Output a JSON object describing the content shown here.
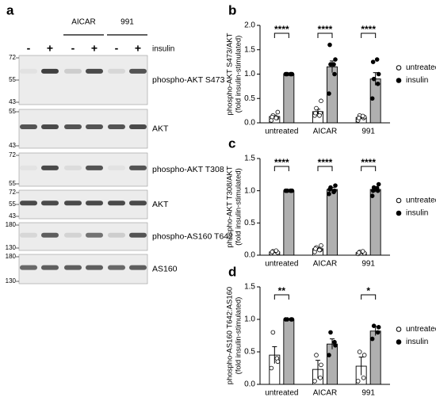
{
  "panel_a": {
    "panel": "a",
    "treatments": [
      "AICAR",
      "991"
    ],
    "lanes": [
      "-",
      "+",
      "-",
      "+",
      "-",
      "+"
    ],
    "lane_factor": "insulin",
    "blots": [
      {
        "label": "phospho-AKT S473",
        "markers": [
          72,
          55,
          43
        ]
      },
      {
        "label": "AKT",
        "markers": [
          55,
          43
        ]
      },
      {
        "label": "phospho-AKT T308",
        "markers": [
          72,
          55
        ]
      },
      {
        "label": "AKT",
        "markers": [
          72,
          55,
          43
        ]
      },
      {
        "label": "phospho-AS160 T642",
        "markers": [
          180,
          130
        ]
      },
      {
        "label": "AS160",
        "markers": [
          180,
          130
        ]
      }
    ]
  },
  "chart_data": [
    {
      "type": "bar",
      "panel": "b",
      "ylabel": [
        "phospho-AKT S473/AKT",
        "(fold insulin-stimulated)"
      ],
      "categories": [
        "untreated",
        "AICAR",
        "991"
      ],
      "ylim": [
        0,
        2
      ],
      "yticks": [
        {
          "value": 0,
          "label": "0.0"
        },
        {
          "value": 0.5,
          "label": "0.5"
        },
        {
          "value": 1,
          "label": "1.0"
        },
        {
          "value": 1.5,
          "label": "1.5"
        },
        {
          "value": 2,
          "label": "2.0"
        }
      ],
      "series": [
        {
          "name": "untreated",
          "color": "#ffffff",
          "marker": "open",
          "values": [
            0.13,
            0.23,
            0.11
          ],
          "errors": [
            0.03,
            0.05,
            0.03
          ],
          "points": [
            [
              0.05,
              0.1,
              0.15,
              0.22,
              0.12,
              0.1
            ],
            [
              0.15,
              0.2,
              0.3,
              0.45,
              0.2,
              0.15
            ],
            [
              0.05,
              0.1,
              0.15,
              0.12,
              0.1,
              0.14
            ]
          ]
        },
        {
          "name": "insulin",
          "color": "#b0b0b0",
          "marker": "filled",
          "values": [
            1.0,
            1.15,
            0.9
          ],
          "errors": [
            0,
            0.12,
            0.13
          ],
          "points": [
            [
              1,
              1,
              1,
              1,
              1,
              1
            ],
            [
              0.6,
              1.0,
              1.2,
              1.3,
              1.6,
              1.2
            ],
            [
              0.5,
              0.8,
              0.9,
              1.0,
              1.25,
              1.3
            ]
          ]
        }
      ],
      "annotations": [
        "****",
        "****",
        "****"
      ]
    },
    {
      "type": "bar",
      "panel": "c",
      "ylabel": [
        "phospho-AKT T308/AKT",
        "(fold insulin-stimulated)"
      ],
      "categories": [
        "untreated",
        "AICAR",
        "991"
      ],
      "ylim": [
        0,
        1.5
      ],
      "yticks": [
        {
          "value": 0,
          "label": "0.0"
        },
        {
          "value": 0.5,
          "label": "0.5"
        },
        {
          "value": 1,
          "label": "1.0"
        },
        {
          "value": 1.5,
          "label": "1.5"
        }
      ],
      "series": [
        {
          "name": "untreated",
          "color": "#ffffff",
          "marker": "open",
          "values": [
            0.05,
            0.1,
            0.04
          ],
          "errors": [
            0.01,
            0.02,
            0.01
          ],
          "points": [
            [
              0.03,
              0.05,
              0.06,
              0.04,
              0.05,
              0.07
            ],
            [
              0.05,
              0.08,
              0.12,
              0.15,
              0.1,
              0.08
            ],
            [
              0.02,
              0.04,
              0.05,
              0.03,
              0.04,
              0.06
            ]
          ]
        },
        {
          "name": "insulin",
          "color": "#b0b0b0",
          "marker": "filled",
          "values": [
            1.0,
            1.02,
            1.02
          ],
          "errors": [
            0,
            0.03,
            0.04
          ],
          "points": [
            [
              1,
              1,
              1,
              1,
              1,
              1
            ],
            [
              0.95,
              1.0,
              1.05,
              1.08,
              1.02,
              0.98
            ],
            [
              0.92,
              1.0,
              1.05,
              1.1,
              1.0,
              1.04
            ]
          ]
        }
      ],
      "annotations": [
        "****",
        "****",
        "****"
      ]
    },
    {
      "type": "bar",
      "panel": "d",
      "ylabel": [
        "phospho-AS160 T642:AS160",
        "(fold insulin-stimulated)"
      ],
      "categories": [
        "untreated",
        "AICAR",
        "991"
      ],
      "ylim": [
        0,
        1.5
      ],
      "yticks": [
        {
          "value": 0,
          "label": "0.0"
        },
        {
          "value": 0.5,
          "label": "0.5"
        },
        {
          "value": 1,
          "label": "1.0"
        },
        {
          "value": 1.5,
          "label": "1.5"
        }
      ],
      "series": [
        {
          "name": "untreated",
          "color": "#ffffff",
          "marker": "open",
          "values": [
            0.45,
            0.23,
            0.28
          ],
          "errors": [
            0.13,
            0.14,
            0.14
          ],
          "points": [
            [
              0.25,
              0.4,
              0.8,
              0.35
            ],
            [
              0.05,
              0.1,
              0.45,
              0.3
            ],
            [
              0.05,
              0.1,
              0.5,
              0.45
            ]
          ]
        },
        {
          "name": "insulin",
          "color": "#b0b0b0",
          "marker": "filled",
          "values": [
            1.0,
            0.62,
            0.82
          ],
          "errors": [
            0,
            0.08,
            0.07
          ],
          "points": [
            [
              1,
              1,
              1,
              1
            ],
            [
              0.45,
              0.65,
              0.8,
              0.6
            ],
            [
              0.7,
              0.8,
              0.9,
              0.88
            ]
          ]
        }
      ],
      "annotations": [
        "**",
        null,
        "*"
      ]
    }
  ]
}
